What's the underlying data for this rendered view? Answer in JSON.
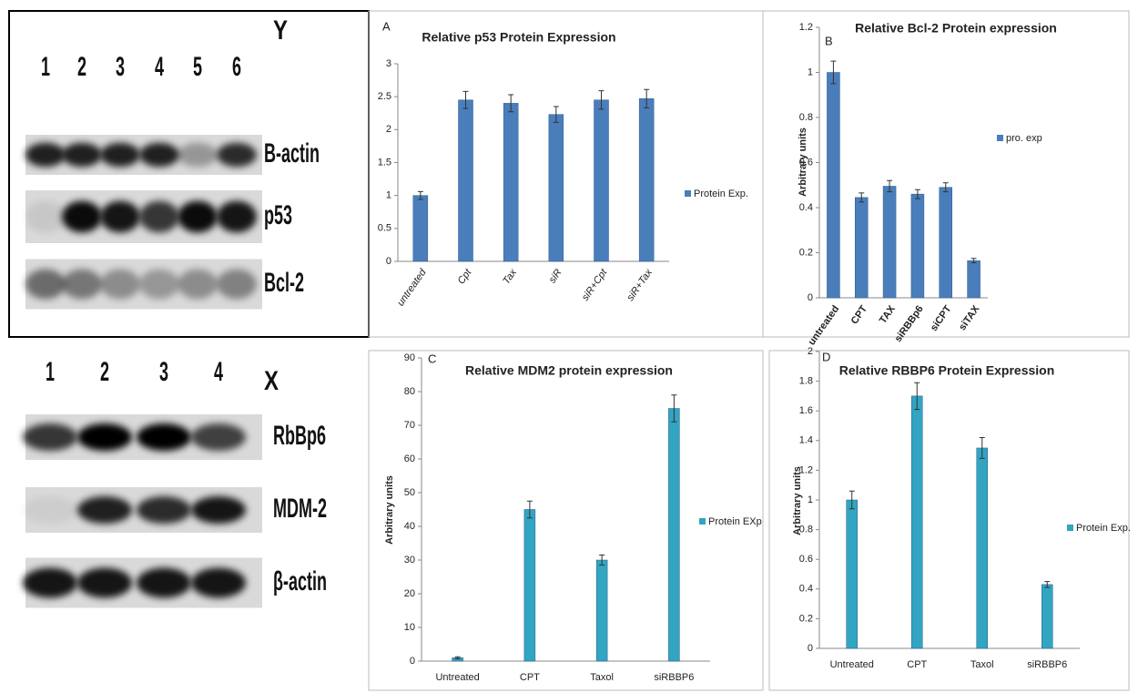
{
  "blots": [
    {
      "lanes": [
        "1",
        "2",
        "3",
        "4",
        "5",
        "6"
      ],
      "tag": "Y",
      "rows": [
        "B-actin",
        "p53",
        "Bcl-2"
      ]
    },
    {
      "lanes": [
        "1",
        "2",
        "3",
        "4"
      ],
      "tag": "X",
      "rows": [
        "RbBp6",
        "MDM-2",
        "β-actin"
      ]
    }
  ],
  "chart_data": [
    {
      "type": "bar",
      "title": "Relative p53 Protein Expression",
      "panel_label": "A",
      "categories": [
        "untreated",
        "Cpt",
        "Tax",
        "siR",
        "siR+Cpt",
        "siR+Tax"
      ],
      "series": [
        {
          "name": "Protein Exp.",
          "color": "#4a7ebb",
          "values": [
            1,
            2.45,
            2.4,
            2.23,
            2.45,
            2.47
          ],
          "errors": [
            0.06,
            0.13,
            0.13,
            0.12,
            0.14,
            0.14
          ]
        }
      ],
      "ylim": [
        0,
        3
      ],
      "yticks": [
        0,
        0.5,
        1,
        1.5,
        2,
        2.5,
        3
      ]
    },
    {
      "type": "bar",
      "title": "Relative Bcl-2 Protein expression",
      "panel_label": "B",
      "y_label": "Arbitrary units",
      "categories": [
        "untreated",
        "CPT",
        "TAX",
        "siRBBp6",
        "siCPT",
        "siTAX"
      ],
      "series": [
        {
          "name": "pro. exp",
          "color": "#4a7ebb",
          "values": [
            1,
            0.445,
            0.495,
            0.46,
            0.49,
            0.165
          ],
          "errors": [
            0.05,
            0.02,
            0.025,
            0.02,
            0.02,
            0.01
          ]
        }
      ],
      "ylim": [
        0,
        1.2
      ],
      "yticks": [
        0,
        0.2,
        0.4,
        0.6,
        0.8,
        1,
        1.2
      ]
    },
    {
      "type": "bar",
      "title": "Relative MDM2 protein expression",
      "panel_label": "C",
      "y_label": "Arbitrary units",
      "categories": [
        "Untreated",
        "CPT",
        "Taxol",
        "siRBBP6"
      ],
      "series": [
        {
          "name": "Protein EXp",
          "color": "#31a5c2",
          "values": [
            1,
            45,
            30,
            75
          ],
          "errors": [
            0.3,
            2.5,
            1.5,
            4
          ]
        }
      ],
      "ylim": [
        0,
        90
      ],
      "yticks": [
        0,
        10,
        20,
        30,
        40,
        50,
        60,
        70,
        80,
        90
      ]
    },
    {
      "type": "bar",
      "title": "Relative RBBP6 Protein Expression",
      "panel_label": "D",
      "y_label": "Arbitrary units",
      "categories": [
        "Untreated",
        "CPT",
        "Taxol",
        "siRBBP6"
      ],
      "series": [
        {
          "name": "Protein Exp.",
          "color": "#31a5c2",
          "values": [
            1,
            1.7,
            1.35,
            0.43
          ],
          "errors": [
            0.06,
            0.09,
            0.07,
            0.02
          ]
        }
      ],
      "ylim": [
        0,
        2
      ],
      "yticks": [
        0,
        0.2,
        0.4,
        0.6,
        0.8,
        1,
        1.2,
        1.4,
        1.6,
        1.8,
        2
      ]
    }
  ]
}
